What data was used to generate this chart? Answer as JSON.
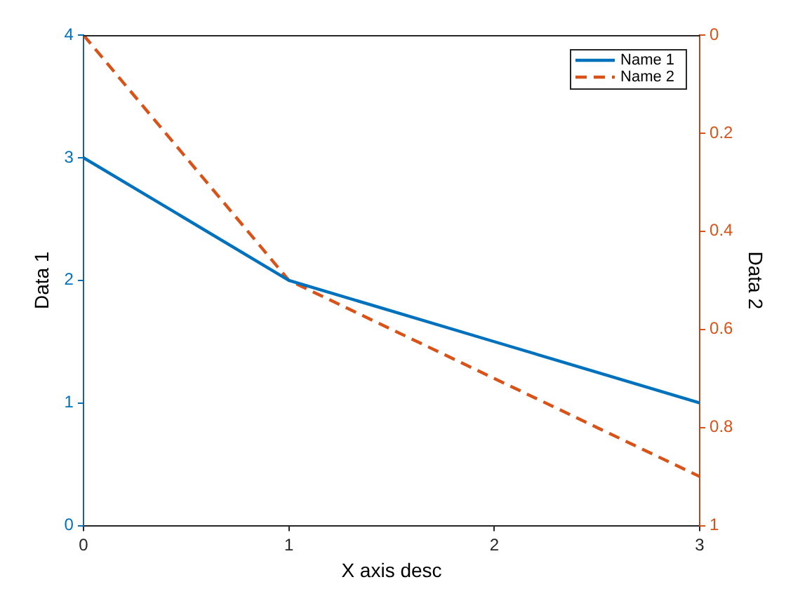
{
  "chart_data": {
    "type": "line",
    "xlabel": "X axis desc",
    "ylabel": "Data 1",
    "y2label": "Data 2",
    "x": [
      0,
      1,
      2,
      3
    ],
    "xlim": [
      0,
      3
    ],
    "xticks": [
      0,
      1,
      2,
      3
    ],
    "ylim": [
      0,
      4
    ],
    "yticks": [
      0,
      1,
      2,
      3,
      4
    ],
    "y2lim": [
      1,
      0
    ],
    "y2ticks": [
      0,
      0.2,
      0.4,
      0.6,
      0.8,
      1
    ],
    "series": [
      {
        "name": "Name 1",
        "color": "#0072bd",
        "values": [
          3,
          2,
          1.5,
          1
        ],
        "line_style": "solid"
      },
      {
        "name": "Name 2",
        "color": "#d95319",
        "values": [
          0,
          0.5,
          0.7,
          0.9
        ],
        "axis": "y2",
        "line_style": "dashed"
      }
    ],
    "grid": false,
    "legend": "top right",
    "marker": "none"
  }
}
